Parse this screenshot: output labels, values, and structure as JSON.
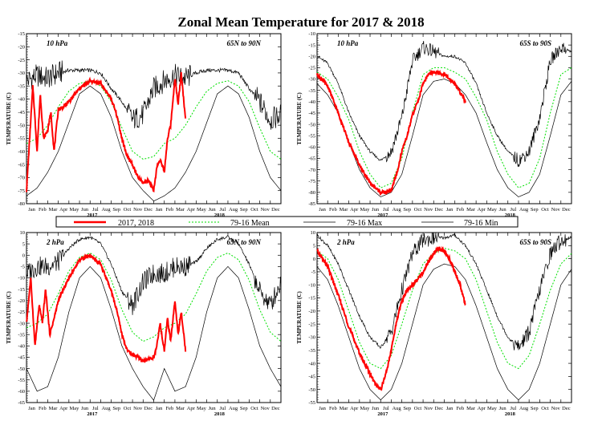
{
  "title": "Zonal Mean Temperature for 2017 & 2018",
  "ylabel": "TEMPERATURE (C)",
  "month_labels": [
    "Jan",
    "Feb",
    "Mar",
    "Apr",
    "May",
    "Jun",
    "Jul",
    "Aug",
    "Sep",
    "Oct",
    "Nov",
    "Dec",
    "Jan",
    "Feb",
    "Mar",
    "Apr",
    "May",
    "Jun",
    "Jul",
    "Aug",
    "Sep",
    "Oct",
    "Nov",
    "Dec"
  ],
  "year_labels": [
    "2017",
    "2018"
  ],
  "legend": {
    "obs": "2017, 2018",
    "mean": "79-16 Mean",
    "max": "79-16 Max",
    "min": "79-16 Min"
  },
  "colors": {
    "obs": "#ff0000",
    "mean": "#00e000",
    "envelope": "#000000"
  },
  "chart_data": [
    {
      "type": "line",
      "pressure": "10 hPa",
      "region": "65N to 90N",
      "ylim": [
        -80,
        -15
      ],
      "yticks": [
        -80,
        -75,
        -70,
        -65,
        -60,
        -55,
        -50,
        -45,
        -40,
        -35,
        -30,
        -25,
        -20,
        -15
      ],
      "x_months": [
        0,
        1,
        2,
        3,
        4,
        5,
        6,
        7,
        8,
        9,
        10,
        11,
        12,
        13,
        14,
        15,
        16,
        17,
        18,
        19,
        20,
        21,
        22,
        23,
        24
      ],
      "mean": [
        -57,
        -55,
        -50,
        -43,
        -37,
        -34,
        -33,
        -35,
        -41,
        -51,
        -60,
        -63,
        -62,
        -57,
        -55,
        -50,
        -43,
        -37,
        -34,
        -33,
        -35,
        -41,
        -51,
        -60,
        -63
      ],
      "max": [
        -33,
        -31,
        -32,
        -30,
        -29,
        -29,
        -29,
        -30,
        -36,
        -41,
        -48,
        -46,
        -36,
        -33,
        -31,
        -32,
        -30,
        -29,
        -29,
        -29,
        -30,
        -36,
        -41,
        -48,
        -46
      ],
      "min": [
        -77,
        -74,
        -68,
        -60,
        -49,
        -38,
        -35,
        -38,
        -47,
        -60,
        -70,
        -75,
        -79,
        -77,
        -74,
        -68,
        -60,
        -49,
        -38,
        -35,
        -38,
        -47,
        -60,
        -70,
        -75
      ],
      "obs_x": [
        0,
        0.3,
        0.6,
        1.0,
        1.3,
        1.6,
        2.0,
        2.3,
        2.6,
        3.0,
        3.5,
        4,
        5,
        6,
        7,
        8,
        8.5,
        9,
        9.5,
        10,
        10.5,
        11,
        11.5,
        12,
        12.3,
        12.6,
        13,
        13.3,
        13.6,
        14,
        14.3,
        14.6,
        15.0
      ],
      "obs": [
        -75,
        -55,
        -35,
        -60,
        -38,
        -55,
        -52,
        -45,
        -60,
        -44,
        -43,
        -41,
        -36,
        -33,
        -34,
        -40,
        -46,
        -55,
        -62,
        -65,
        -70,
        -72,
        -71,
        -75,
        -66,
        -63,
        -68,
        -55,
        -50,
        -32,
        -42,
        -30,
        -48
      ]
    },
    {
      "type": "line",
      "pressure": "10 hPa",
      "region": "65S to 90S",
      "ylim": [
        -85,
        -10
      ],
      "yticks": [
        -85,
        -80,
        -75,
        -70,
        -65,
        -60,
        -55,
        -50,
        -45,
        -40,
        -35,
        -30,
        -25,
        -20,
        -15,
        -10
      ],
      "x_months": [
        0,
        1,
        2,
        3,
        4,
        5,
        6,
        7,
        8,
        9,
        10,
        11,
        12,
        13,
        14,
        15,
        16,
        17,
        18,
        19,
        20,
        21,
        22,
        23,
        24
      ],
      "mean": [
        -27,
        -30,
        -38,
        -48,
        -62,
        -72,
        -78,
        -76,
        -65,
        -45,
        -28,
        -25,
        -25,
        -27,
        -30,
        -38,
        -48,
        -62,
        -72,
        -78,
        -76,
        -65,
        -45,
        -28,
        -25
      ],
      "max": [
        -20,
        -23,
        -32,
        -45,
        -55,
        -62,
        -66,
        -62,
        -47,
        -22,
        -16,
        -18,
        -20,
        -20,
        -23,
        -32,
        -45,
        -55,
        -62,
        -66,
        -62,
        -47,
        -22,
        -16,
        -18
      ],
      "min": [
        -32,
        -37,
        -45,
        -58,
        -70,
        -78,
        -82,
        -80,
        -72,
        -55,
        -37,
        -31,
        -30,
        -32,
        -37,
        -45,
        -58,
        -70,
        -78,
        -82,
        -80,
        -72,
        -55,
        -37,
        -31
      ],
      "obs_x": [
        0,
        1,
        2,
        3,
        4,
        5,
        6,
        6.5,
        7,
        7.5,
        8,
        8.5,
        9,
        9.5,
        10,
        10.5,
        11,
        12,
        13,
        13.5,
        14.0
      ],
      "obs": [
        -28,
        -33,
        -45,
        -58,
        -68,
        -76,
        -80,
        -80,
        -79,
        -72,
        -62,
        -55,
        -46,
        -40,
        -32,
        -28,
        -27,
        -28,
        -32,
        -36,
        -40
      ]
    },
    {
      "type": "line",
      "pressure": "2 hPa",
      "region": "65N to 90N",
      "ylim": [
        -65,
        10
      ],
      "yticks": [
        -65,
        -60,
        -55,
        -50,
        -45,
        -40,
        -35,
        -30,
        -25,
        -20,
        -15,
        -10,
        -5,
        0,
        5,
        10
      ],
      "x_months": [
        0,
        1,
        2,
        3,
        4,
        5,
        6,
        7,
        8,
        9,
        10,
        11,
        12,
        13,
        14,
        15,
        16,
        17,
        18,
        19,
        20,
        21,
        22,
        23,
        24
      ],
      "mean": [
        -32,
        -30,
        -26,
        -17,
        -7,
        -1,
        1,
        -2,
        -11,
        -24,
        -34,
        -38,
        -36,
        -32,
        -30,
        -26,
        -17,
        -7,
        -1,
        1,
        -2,
        -11,
        -24,
        -34,
        -38
      ],
      "max": [
        -8,
        -5,
        -5,
        -3,
        3,
        7,
        8,
        5,
        -4,
        -16,
        -22,
        -12,
        -8,
        -8,
        -5,
        -5,
        -3,
        3,
        7,
        8,
        5,
        -4,
        -16,
        -22,
        -12
      ],
      "min": [
        -50,
        -60,
        -58,
        -45,
        -25,
        -10,
        -5,
        -10,
        -24,
        -40,
        -50,
        -58,
        -64,
        -50,
        -60,
        -58,
        -45,
        -25,
        -10,
        -5,
        -10,
        -24,
        -40,
        -50,
        -58
      ],
      "obs_x": [
        0,
        0.4,
        0.8,
        1.2,
        1.5,
        1.8,
        2.2,
        2.6,
        3.0,
        4,
        5,
        6,
        7,
        8,
        8.5,
        9,
        9.5,
        10,
        10.5,
        11,
        11.5,
        12,
        12.3,
        12.6,
        13,
        13.3,
        13.6,
        14,
        14.3,
        14.6,
        15.0
      ],
      "obs": [
        -30,
        -10,
        -40,
        -22,
        -30,
        -15,
        -35,
        -28,
        -20,
        -10,
        -2,
        0,
        -4,
        -16,
        -24,
        -35,
        -42,
        -44,
        -45,
        -47,
        -46,
        -45,
        -40,
        -30,
        -42,
        -28,
        -38,
        -20,
        -35,
        -25,
        -42
      ]
    },
    {
      "type": "line",
      "pressure": "2 hPa",
      "region": "65S to 90S",
      "ylim": [
        -55,
        10
      ],
      "yticks": [
        -55,
        -50,
        -45,
        -40,
        -35,
        -30,
        -25,
        -20,
        -15,
        -10,
        -5,
        0,
        5,
        10
      ],
      "x_months": [
        0,
        1,
        2,
        3,
        4,
        5,
        6,
        7,
        8,
        9,
        10,
        11,
        12,
        13,
        14,
        15,
        16,
        17,
        18,
        19,
        20,
        21,
        22,
        23,
        24
      ],
      "mean": [
        3,
        0,
        -8,
        -20,
        -32,
        -40,
        -42,
        -37,
        -25,
        -12,
        -2,
        2,
        4,
        3,
        0,
        -8,
        -20,
        -32,
        -40,
        -42,
        -37,
        -25,
        -12,
        -2,
        2
      ],
      "max": [
        9,
        5,
        -2,
        -12,
        -22,
        -30,
        -34,
        -28,
        -12,
        2,
        7,
        8,
        8,
        9,
        5,
        -2,
        -12,
        -22,
        -30,
        -34,
        -28,
        -12,
        2,
        7,
        8
      ],
      "min": [
        -3,
        -8,
        -18,
        -30,
        -42,
        -50,
        -54,
        -50,
        -40,
        -25,
        -10,
        -4,
        -2,
        -3,
        -8,
        -18,
        -30,
        -42,
        -50,
        -54,
        -50,
        -40,
        -25,
        -10,
        -4
      ],
      "obs_x": [
        0,
        1,
        2,
        3,
        4,
        5,
        5.5,
        6,
        6.5,
        7,
        7.5,
        8,
        8.5,
        9,
        9.5,
        10,
        10.5,
        11,
        11.5,
        12,
        12.5,
        13,
        13.5,
        14.0
      ],
      "obs": [
        3,
        -3,
        -14,
        -26,
        -36,
        -44,
        -48,
        -50,
        -44,
        -35,
        -24,
        -16,
        -12,
        -10,
        -8,
        -5,
        -1,
        2,
        4,
        3,
        0,
        -5,
        -10,
        -18
      ]
    }
  ]
}
